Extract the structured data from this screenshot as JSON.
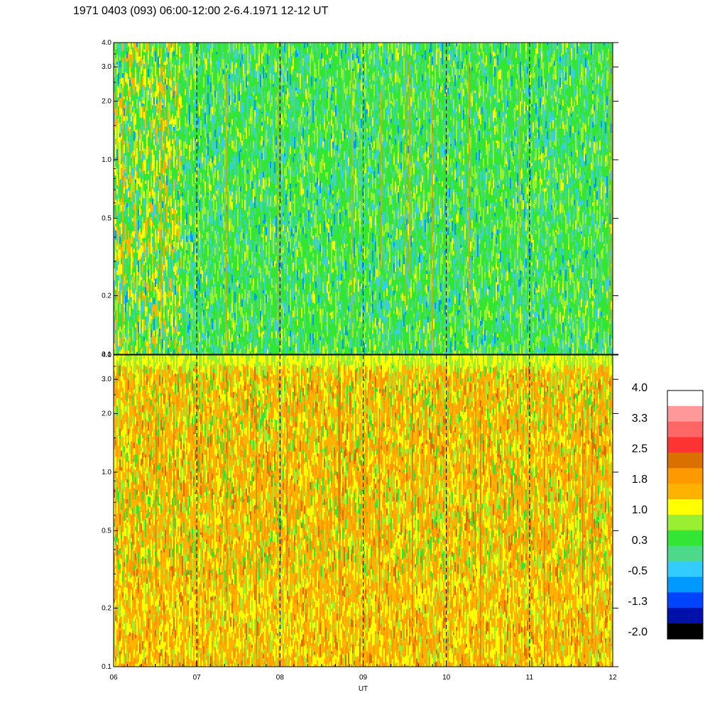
{
  "title": "1971 0403 (093) 06:00-12:00 2-6.4.1971 12-12 UT",
  "chart_data": [
    {
      "type": "heatmap",
      "panel": "top",
      "x_range": [
        6,
        12
      ],
      "y_range": [
        0.1,
        4.0
      ],
      "y_scale": "log",
      "y_ticks": [
        0.1,
        0.2,
        0.5,
        1.0,
        2.0,
        3.0,
        4.0
      ],
      "y_tick_labels": [
        "0.1",
        "0.2",
        "0.5",
        "1.0",
        "2.0",
        "3.0",
        "4.0"
      ],
      "dominant_value_range": [
        -0.5,
        1.0
      ],
      "dominant_colors": [
        "#33e633",
        "#4dd98c",
        "#99f033"
      ]
    },
    {
      "type": "heatmap",
      "panel": "bottom",
      "x_range": [
        6,
        12
      ],
      "y_range": [
        0.1,
        4.0
      ],
      "y_scale": "log",
      "y_ticks": [
        0.1,
        0.2,
        0.5,
        1.0,
        2.0,
        3.0,
        4.0
      ],
      "y_tick_labels": [
        "0.1",
        "0.2",
        "0.5",
        "1.0",
        "2.0",
        "3.0",
        "4.0"
      ],
      "dominant_value_range": [
        1.0,
        2.5
      ],
      "dominant_colors": [
        "#ffb300",
        "#ff9900",
        "#ffff00"
      ]
    }
  ],
  "x_axis": {
    "label": "UT",
    "ticks": [
      6,
      7,
      8,
      9,
      10,
      11,
      12
    ],
    "tick_labels": [
      "06",
      "07",
      "08",
      "09",
      "10",
      "11",
      "12"
    ]
  },
  "colorbar": {
    "labels": [
      "4.0",
      "3.3",
      "2.5",
      "1.8",
      "1.0",
      "0.3",
      "-0.5",
      "-1.3",
      "-2.0"
    ],
    "colors": [
      "#ffffff",
      "#ff9999",
      "#ff6666",
      "#ff3333",
      "#d97000",
      "#ff9900",
      "#ffb300",
      "#ffff00",
      "#99f033",
      "#33e633",
      "#4dd98c",
      "#33ccff",
      "#0099ff",
      "#0044ff",
      "#0011aa",
      "#000000"
    ]
  }
}
